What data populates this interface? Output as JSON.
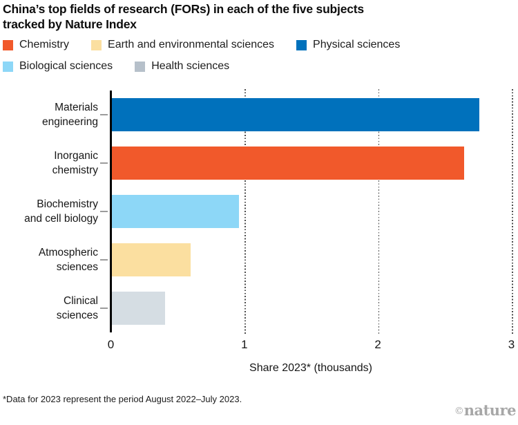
{
  "title": {
    "line1": "China’s top fields of research (FORs) in each of the five subjects",
    "line2": "tracked by Nature Index"
  },
  "legend": {
    "rows": [
      [
        {
          "label": "Chemistry",
          "color": "#F1592B"
        },
        {
          "label": "Earth and environmental sciences",
          "color": "#FBDFA0"
        },
        {
          "label": "Physical sciences",
          "color": "#0071BC"
        }
      ],
      [
        {
          "label": "Biological sciences",
          "color": "#8DD7F7"
        },
        {
          "label": "Health sciences",
          "color": "#B6C0CA"
        }
      ]
    ]
  },
  "chart_data": {
    "type": "bar",
    "orientation": "horizontal",
    "title": "China’s top fields of research (FORs) in each of the five subjects tracked by Nature Index",
    "categories": [
      "Materials engineering",
      "Inorganic chemistry",
      "Biochemistry and cell biology",
      "Atmospheric sciences",
      "Clinical sciences"
    ],
    "category_lines": [
      [
        "Materials",
        "engineering"
      ],
      [
        "Inorganic",
        "chemistry"
      ],
      [
        "Biochemistry",
        "and cell biology"
      ],
      [
        "Atmospheric",
        "sciences"
      ],
      [
        "Clinical",
        "sciences"
      ]
    ],
    "values": [
      2.75,
      2.64,
      0.95,
      0.59,
      0.4
    ],
    "bar_subjects": [
      "Physical sciences",
      "Chemistry",
      "Biological sciences",
      "Earth and environmental sciences",
      "Health sciences"
    ],
    "bar_colors": [
      "#0071BC",
      "#F1592B",
      "#8DD7F7",
      "#FBDFA0",
      "#D5DDE3"
    ],
    "xlabel": "Share 2023* (thousands)",
    "xlim": [
      0,
      3
    ],
    "xticks": [
      0,
      1,
      2,
      3
    ],
    "gridlines_at": [
      1,
      2,
      3
    ],
    "grid_style": "dotted vertical",
    "legend_position": "top"
  },
  "footnote": "*Data for 2023 represent the period August 2022–July 2023.",
  "credit": {
    "copyright": "©",
    "brand": "nature"
  }
}
